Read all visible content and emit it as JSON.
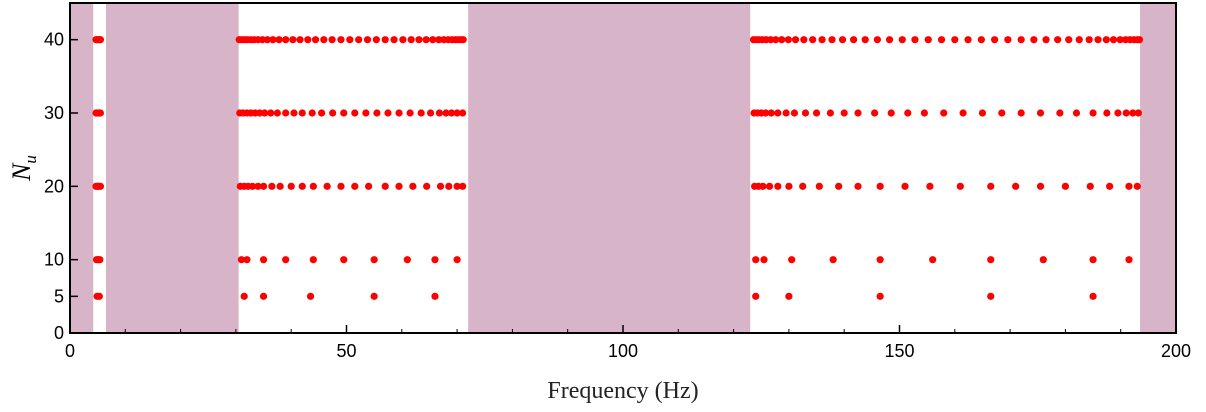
{
  "chart_data": {
    "type": "scatter",
    "xlabel": "Frequency (Hz)",
    "ylabel": "N",
    "ylabel_subscript": "u",
    "xlim": [
      0,
      200
    ],
    "ylim": [
      0,
      45
    ],
    "x_ticks": [
      0,
      50,
      100,
      150,
      200
    ],
    "y_ticks": [
      0,
      5,
      10,
      20,
      30,
      40
    ],
    "grid": false,
    "marker_color": "#ff0000",
    "band_color": "#d8b4c8",
    "shaded_bands": [
      [
        0,
        4.2
      ],
      [
        6.5,
        30.5
      ],
      [
        72,
        123
      ],
      [
        193.5,
        200
      ]
    ],
    "series": [
      {
        "y": 5,
        "x": [
          4.9,
          5.3,
          31.5,
          35,
          43.5,
          55,
          66,
          124,
          130,
          146.5,
          166.5,
          185
        ]
      },
      {
        "y": 10,
        "x": [
          4.8,
          5.0,
          5.2,
          5.4,
          31,
          32,
          35,
          39,
          44,
          49.5,
          55,
          61,
          66,
          70,
          124,
          125.5,
          130.5,
          138,
          146.5,
          156,
          166.5,
          176,
          185,
          191.5
        ]
      },
      {
        "y": 20,
        "x": [
          4.7,
          4.9,
          5.1,
          5.3,
          5.5,
          30.8,
          31.5,
          32.2,
          33,
          34,
          35,
          36.5,
          38,
          40,
          42,
          44,
          46.5,
          49,
          51.5,
          54,
          57,
          59.5,
          62,
          64.5,
          67,
          68.5,
          70,
          71,
          123.8,
          124.5,
          125.3,
          126.5,
          128,
          130,
          132.5,
          135.5,
          139,
          142.5,
          146.5,
          151,
          155.5,
          161,
          166.5,
          171,
          175.5,
          180,
          184.5,
          188,
          191.5,
          193
        ]
      },
      {
        "y": 30,
        "x": [
          4.7,
          4.9,
          5.1,
          5.3,
          5.5,
          30.7,
          31.3,
          32,
          32.7,
          33.5,
          34.3,
          35.2,
          36.3,
          37.5,
          39,
          40.5,
          42,
          43.8,
          45.5,
          47.5,
          49.5,
          51.5,
          53.5,
          55.5,
          57.5,
          59.5,
          61.5,
          63.5,
          65.2,
          66.8,
          68,
          69,
          70,
          71,
          123.7,
          124.3,
          125,
          125.8,
          126.8,
          128,
          129.5,
          131,
          133,
          135,
          137.5,
          140,
          142.5,
          145.5,
          148.5,
          151.5,
          154.5,
          158,
          161.5,
          165,
          168.5,
          172,
          175.5,
          179,
          182,
          185,
          187.5,
          189.5,
          191,
          192.2,
          193.2
        ]
      },
      {
        "y": 40,
        "x": [
          4.7,
          4.9,
          5.1,
          5.3,
          5.5,
          30.6,
          31.1,
          31.6,
          32.1,
          32.7,
          33.3,
          34,
          34.8,
          35.7,
          36.7,
          37.8,
          39,
          40.3,
          41.6,
          43,
          44.4,
          45.9,
          47.4,
          49,
          50.6,
          52.2,
          53.8,
          55.4,
          57,
          58.6,
          60.2,
          61.7,
          63.1,
          64.4,
          65.6,
          66.7,
          67.6,
          68.4,
          69.1,
          69.7,
          70.2,
          70.7,
          71.1,
          123.6,
          124.1,
          124.6,
          125.2,
          125.9,
          126.7,
          127.6,
          128.7,
          129.9,
          131.2,
          132.7,
          134.3,
          136,
          137.8,
          139.7,
          141.7,
          143.8,
          146,
          148.2,
          150.5,
          152.8,
          155.2,
          157.6,
          160,
          162.4,
          164.8,
          167.2,
          169.6,
          172,
          174.3,
          176.5,
          178.6,
          180.6,
          182.5,
          184.3,
          185.9,
          187.4,
          188.7,
          189.9,
          190.9,
          191.7,
          192.4,
          193,
          193.4
        ]
      }
    ]
  }
}
